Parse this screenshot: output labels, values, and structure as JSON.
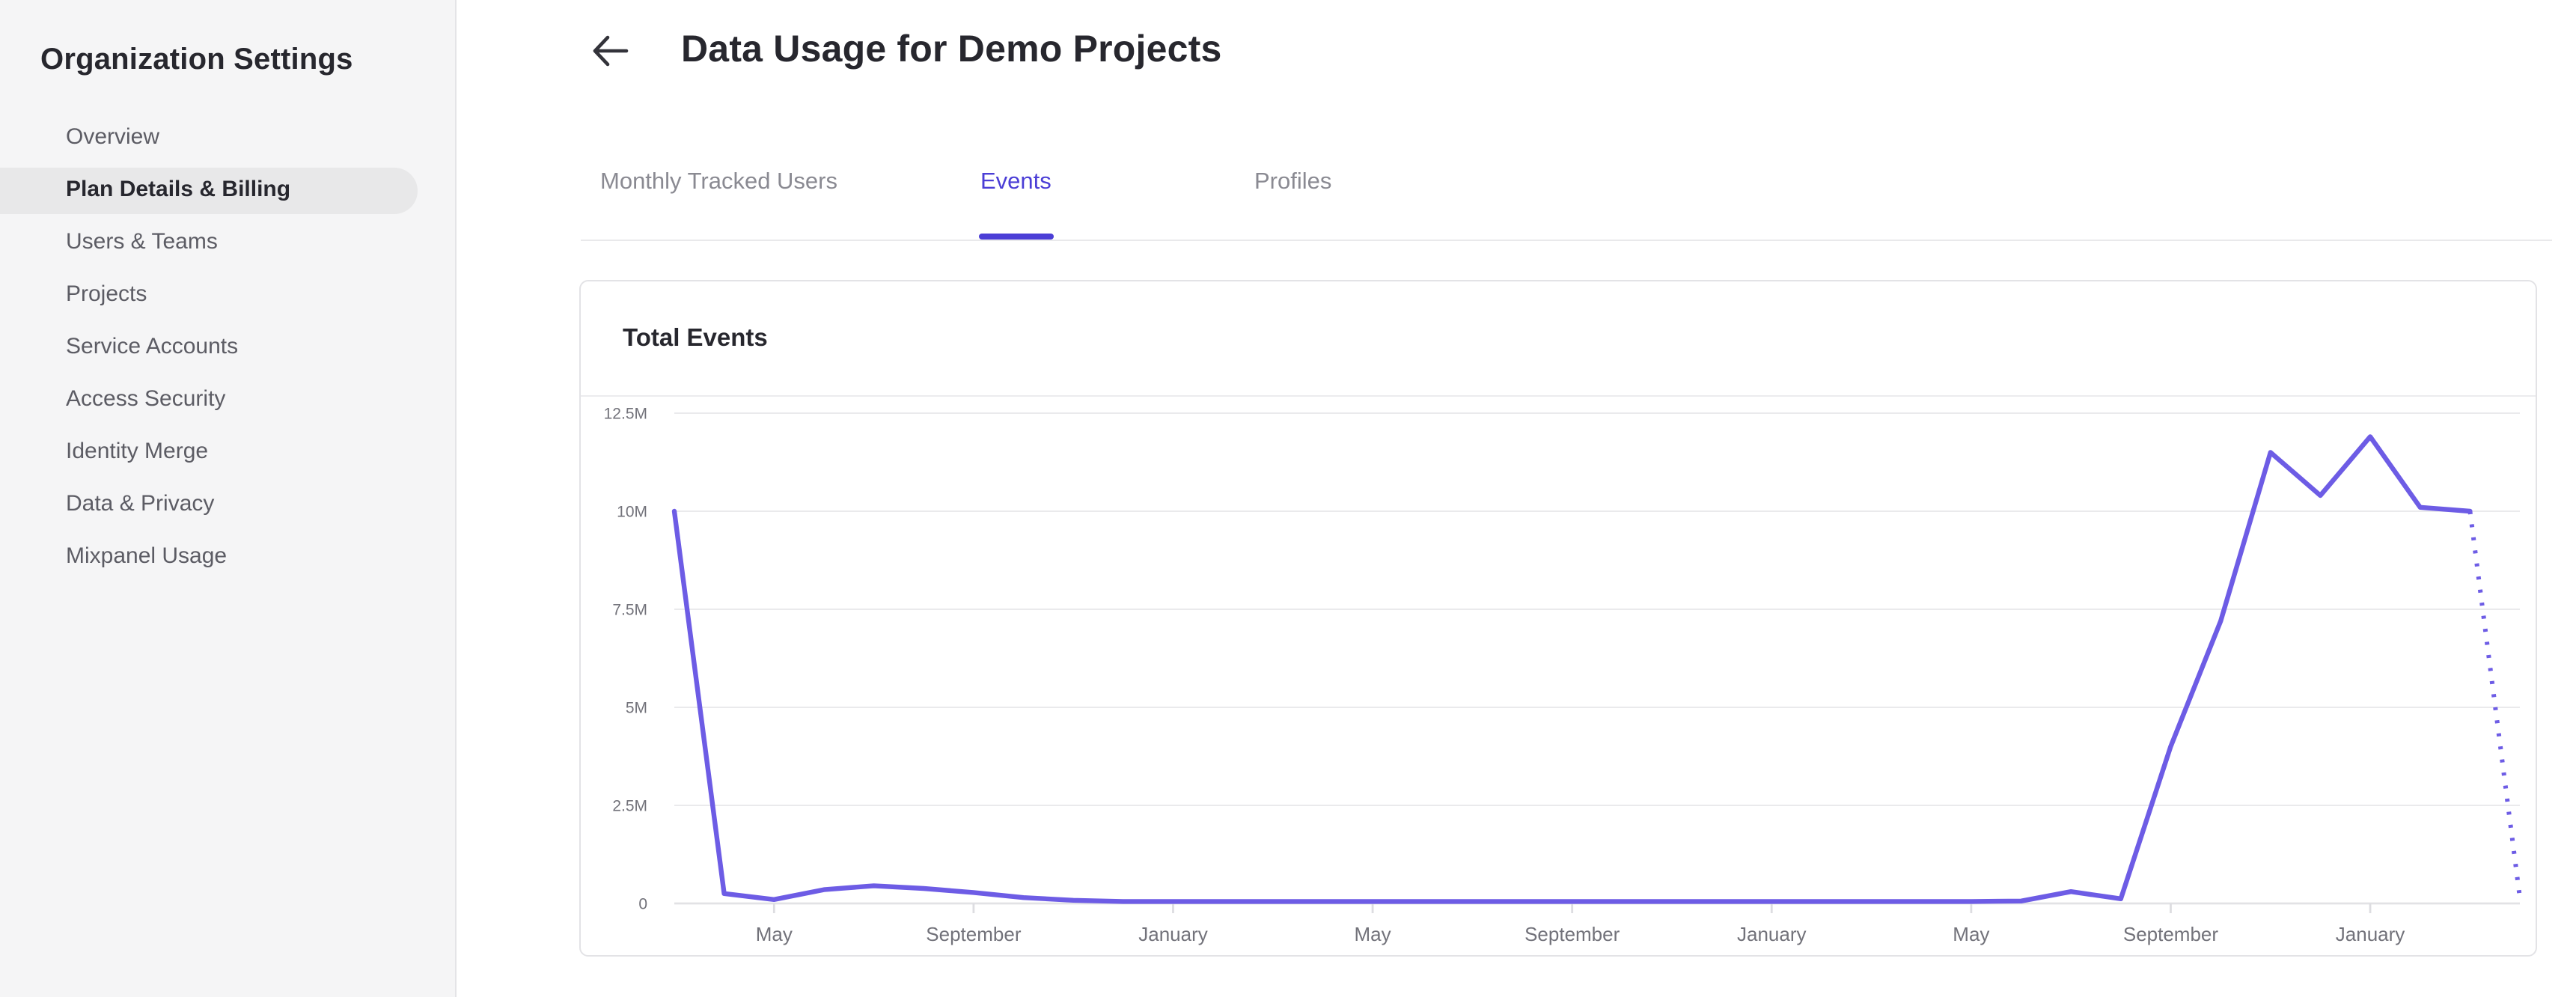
{
  "sidebar": {
    "title": "Organization Settings",
    "items": [
      {
        "label": "Overview",
        "selected": false
      },
      {
        "label": "Plan Details & Billing",
        "selected": true
      },
      {
        "label": "Users & Teams",
        "selected": false
      },
      {
        "label": "Projects",
        "selected": false
      },
      {
        "label": "Service Accounts",
        "selected": false
      },
      {
        "label": "Access Security",
        "selected": false
      },
      {
        "label": "Identity Merge",
        "selected": false
      },
      {
        "label": "Data & Privacy",
        "selected": false
      },
      {
        "label": "Mixpanel Usage",
        "selected": false
      }
    ]
  },
  "header": {
    "title": "Data Usage for Demo Projects",
    "back_icon": "left-arrow-icon"
  },
  "tabs": [
    {
      "label": "Monthly Tracked Users",
      "active": false
    },
    {
      "label": "Events",
      "active": true
    },
    {
      "label": "Profiles",
      "active": false
    }
  ],
  "card": {
    "title": "Total Events"
  },
  "colors": {
    "accent": "#4b3ed6",
    "line": "#6d5ce5",
    "sidebar_bg": "#f5f5f6",
    "pill_bg": "#e8e8e9",
    "text_dark": "#27272e",
    "text_gray": "#5c5c64",
    "axis_label": "#72727a"
  },
  "chart_data": {
    "type": "line",
    "title": "Total Events",
    "unit": "millions of events",
    "x_unit": "month",
    "grid": true,
    "legend": false,
    "ylim": [
      0,
      12.5
    ],
    "y_ticks": [
      {
        "label": "12.5M",
        "value": 12.5
      },
      {
        "label": "10M",
        "value": 10
      },
      {
        "label": "7.5M",
        "value": 7.5
      },
      {
        "label": "5M",
        "value": 5
      },
      {
        "label": "2.5M",
        "value": 2.5
      },
      {
        "label": "0",
        "value": 0
      }
    ],
    "x_ticks": [
      {
        "label": "May",
        "index": 2
      },
      {
        "label": "September",
        "index": 6
      },
      {
        "label": "January",
        "index": 10
      },
      {
        "label": "May",
        "index": 14
      },
      {
        "label": "September",
        "index": 18
      },
      {
        "label": "January",
        "index": 22
      },
      {
        "label": "May",
        "index": 26
      },
      {
        "label": "September",
        "index": 30
      },
      {
        "label": "January",
        "index": 34
      }
    ],
    "x_index_span": 37,
    "series": [
      {
        "name": "Total Events",
        "style": "solid",
        "points": [
          [
            0,
            10.0
          ],
          [
            1,
            0.25
          ],
          [
            2,
            0.1
          ],
          [
            3,
            0.35
          ],
          [
            4,
            0.45
          ],
          [
            5,
            0.38
          ],
          [
            6,
            0.28
          ],
          [
            7,
            0.15
          ],
          [
            8,
            0.08
          ],
          [
            9,
            0.05
          ],
          [
            10,
            0.05
          ],
          [
            11,
            0.05
          ],
          [
            12,
            0.05
          ],
          [
            13,
            0.05
          ],
          [
            14,
            0.05
          ],
          [
            15,
            0.05
          ],
          [
            16,
            0.05
          ],
          [
            17,
            0.05
          ],
          [
            18,
            0.05
          ],
          [
            19,
            0.05
          ],
          [
            20,
            0.05
          ],
          [
            21,
            0.05
          ],
          [
            22,
            0.05
          ],
          [
            23,
            0.05
          ],
          [
            24,
            0.05
          ],
          [
            25,
            0.05
          ],
          [
            26,
            0.05
          ],
          [
            27,
            0.06
          ],
          [
            28,
            0.3
          ],
          [
            29,
            0.12
          ],
          [
            30,
            4.0
          ],
          [
            31,
            7.2
          ],
          [
            32,
            11.5
          ],
          [
            33,
            10.4
          ],
          [
            34,
            11.9
          ],
          [
            35,
            10.1
          ],
          [
            36,
            10.0
          ]
        ]
      },
      {
        "name": "Total Events (incomplete period)",
        "style": "dotted",
        "points": [
          [
            36,
            10.0
          ],
          [
            37,
            0.15
          ]
        ]
      }
    ]
  }
}
